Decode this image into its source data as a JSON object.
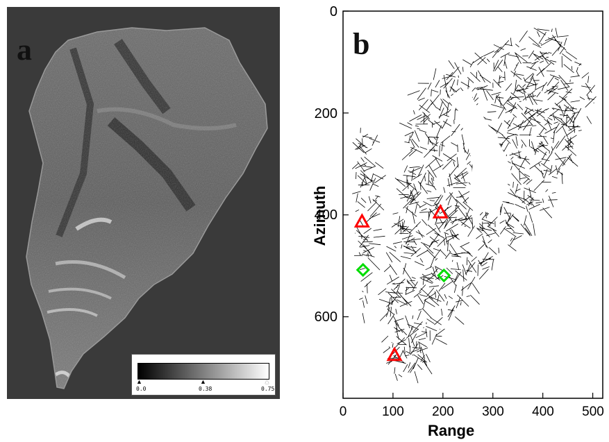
{
  "panel_a": {
    "letter": "a",
    "colorbar": {
      "ticks": [
        "0.0",
        "0.38",
        "0.75"
      ],
      "tick_positions": [
        0,
        0.507,
        1
      ],
      "gradient_colors": [
        "#000000",
        "#808080",
        "#ffffff"
      ]
    }
  },
  "panel_b": {
    "letter": "b",
    "xlabel": "Range",
    "ylabel": "Azimuth",
    "x_ticks": [
      "0",
      "100",
      "200",
      "300",
      "400",
      "500"
    ],
    "y_ticks": [
      "0",
      "200",
      "400",
      "600"
    ],
    "xlim": [
      0,
      520
    ],
    "ylim": [
      760,
      0
    ],
    "markers": {
      "triangles": [
        {
          "x": 38,
          "y": 413
        },
        {
          "x": 195,
          "y": 395
        },
        {
          "x": 103,
          "y": 675
        }
      ],
      "diamonds": [
        {
          "x": 40,
          "y": 508
        },
        {
          "x": 202,
          "y": 519
        }
      ],
      "triangle_color": "#ff0000",
      "diamond_color": "#00dd00"
    }
  }
}
